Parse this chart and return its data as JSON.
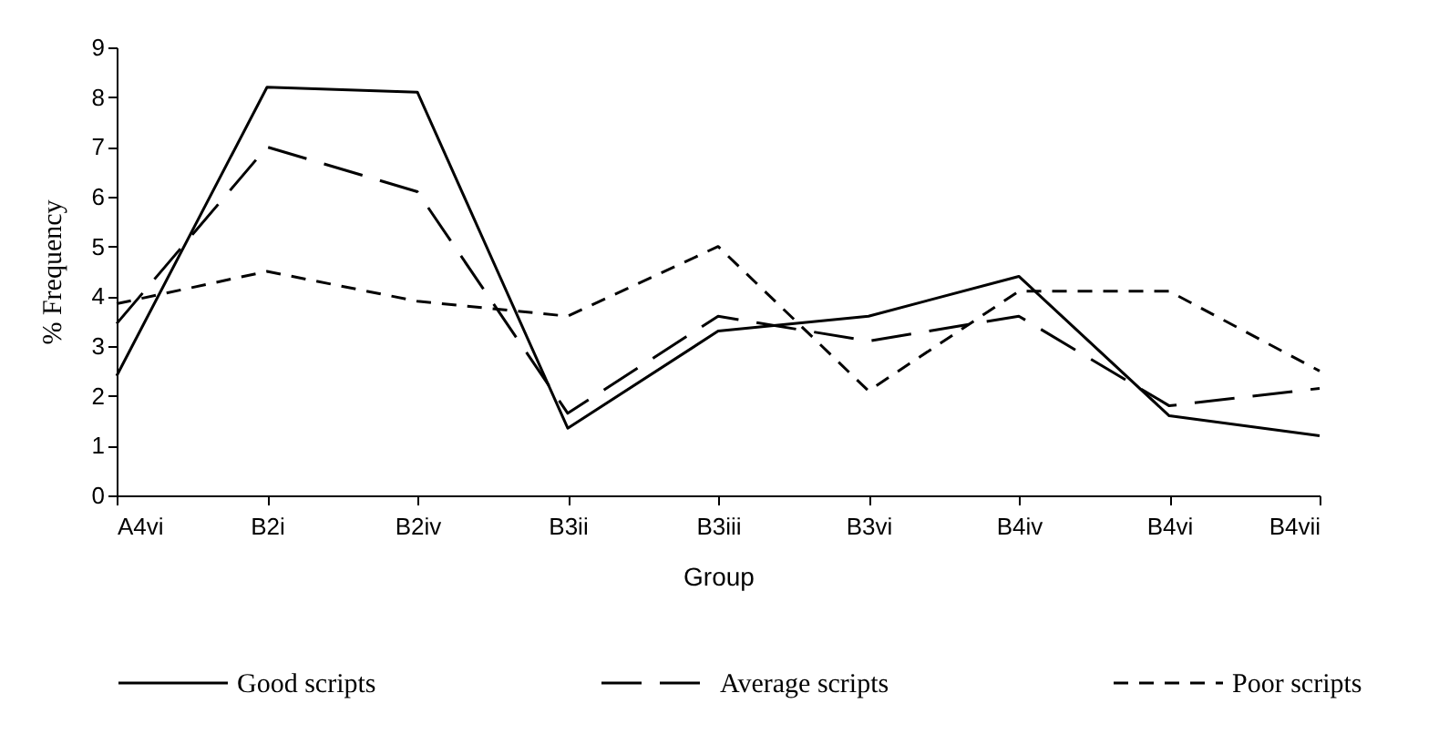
{
  "chart_data": {
    "type": "line",
    "xlabel": "Group",
    "ylabel": "% Frequency",
    "categories": [
      "A4vi",
      "B2i",
      "B2iv",
      "B3ii",
      "B3iii",
      "B3vi",
      "B4iv",
      "B4vi",
      "B4vii"
    ],
    "series": [
      {
        "name": "Good scripts",
        "color": "#000000",
        "line_style": "solid",
        "values": [
          2.4,
          8.2,
          8.1,
          1.35,
          3.3,
          3.6,
          4.4,
          1.6,
          1.2
        ]
      },
      {
        "name": "Average scripts",
        "color": "#000000",
        "line_style": "dashed",
        "values": [
          3.45,
          7.0,
          6.1,
          1.65,
          3.6,
          3.1,
          3.6,
          1.8,
          2.15
        ]
      },
      {
        "name": "Poor scripts",
        "color": "#000000",
        "line_style": "dashed",
        "values": [
          3.85,
          4.5,
          3.9,
          3.6,
          5.0,
          2.1,
          4.1,
          4.1,
          2.5
        ]
      }
    ],
    "ylim": [
      0,
      9
    ],
    "yticks": [
      0,
      1,
      2,
      3,
      4,
      5,
      6,
      7,
      8,
      9
    ],
    "grid": false,
    "legend": "bottom",
    "marker": "none"
  }
}
